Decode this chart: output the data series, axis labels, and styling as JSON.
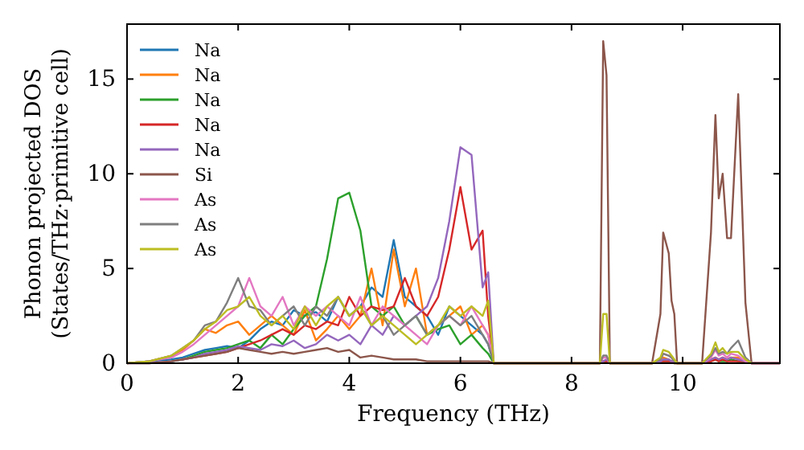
{
  "chart_data": {
    "type": "line",
    "xlabel": "Frequency (THz)",
    "ylabel": "Phonon projected DOS\n(States/THz·primitive cell)",
    "x": [
      0,
      0.4,
      0.8,
      1.0,
      1.2,
      1.4,
      1.6,
      1.8,
      2.0,
      2.2,
      2.4,
      2.6,
      2.8,
      3.0,
      3.2,
      3.4,
      3.6,
      3.8,
      4.0,
      4.2,
      4.4,
      4.6,
      4.8,
      5.0,
      5.2,
      5.4,
      5.6,
      5.8,
      6.0,
      6.2,
      6.4,
      6.5,
      6.6,
      8.51,
      8.57,
      8.63,
      8.69,
      9.45,
      9.6,
      9.65,
      9.75,
      9.8,
      9.85,
      9.9,
      10.35,
      10.51,
      10.59,
      10.65,
      10.72,
      10.8,
      10.87,
      11.0,
      11.13,
      11.24,
      11.75
    ],
    "xlim": [
      0,
      11.75
    ],
    "xticks": [
      0,
      2,
      4,
      6,
      8,
      10
    ],
    "ylim": [
      0,
      17.9
    ],
    "yticks": [
      0,
      5,
      10,
      15
    ],
    "legend": "top left",
    "line_style": "solid",
    "marker": "none",
    "series": [
      {
        "name": "Na",
        "color": "#1f77b4",
        "values": [
          0,
          0.1,
          0.2,
          0.3,
          0.5,
          0.7,
          0.8,
          0.9,
          0.8,
          1.2,
          1.8,
          2.2,
          2.0,
          2.8,
          2.5,
          2.7,
          2.2,
          3.5,
          2.5,
          3.0,
          4.0,
          3.5,
          6.5,
          3.5,
          3.0,
          2.5,
          1.5,
          3.0,
          2.5,
          2.0,
          1.5,
          1.0,
          0,
          null,
          null,
          null,
          null,
          null,
          null,
          null,
          null,
          null,
          null,
          null,
          null,
          null,
          null,
          null,
          null,
          null,
          null,
          null,
          null,
          null,
          null
        ]
      },
      {
        "name": "Na",
        "color": "#ff7f0e",
        "values": [
          0,
          0.1,
          0.4,
          0.7,
          1.2,
          1.8,
          1.6,
          2.0,
          2.2,
          1.5,
          2.0,
          2.5,
          2.0,
          1.5,
          2.8,
          1.2,
          1.8,
          2.5,
          1.8,
          2.5,
          5.0,
          2.0,
          6.0,
          3.0,
          5.0,
          1.5,
          2.0,
          2.5,
          3.0,
          1.5,
          2.0,
          1.5,
          0,
          0,
          0.1,
          0.1,
          0,
          0,
          0.2,
          0.3,
          0.2,
          0.1,
          0.1,
          0,
          0,
          0.2,
          0.3,
          0.2,
          0.3,
          0.2,
          0.3,
          0.3,
          0.1,
          0,
          0
        ]
      },
      {
        "name": "Na",
        "color": "#2ca02c",
        "values": [
          null,
          null,
          0.1,
          0.2,
          0.4,
          0.6,
          0.7,
          0.8,
          1.0,
          1.2,
          0.8,
          1.5,
          1.0,
          1.8,
          2.5,
          3.0,
          5.5,
          8.7,
          9.0,
          7.0,
          3.0,
          2.5,
          3.0,
          2.0,
          2.5,
          1.5,
          1.8,
          2.0,
          1.0,
          1.5,
          0.8,
          0.5,
          0,
          0,
          0.1,
          0.1,
          0,
          0,
          0.1,
          0.1,
          0.1,
          0.1,
          0,
          0,
          0,
          0.1,
          0.2,
          0.1,
          0.1,
          0.1,
          0.2,
          0.1,
          0.1,
          null,
          null
        ]
      },
      {
        "name": "Na",
        "color": "#d62728",
        "values": [
          null,
          null,
          null,
          0.2,
          0.3,
          0.4,
          0.5,
          0.6,
          0.8,
          1.0,
          1.2,
          1.5,
          1.8,
          1.5,
          2.0,
          1.8,
          2.2,
          2.0,
          3.5,
          2.5,
          3.0,
          2.8,
          3.0,
          4.5,
          3.0,
          2.5,
          3.5,
          6.0,
          9.3,
          6.0,
          7.0,
          2.5,
          0,
          0,
          0.1,
          0.1,
          0,
          0,
          0.1,
          0.1,
          0.1,
          0.1,
          0,
          0,
          0,
          0.1,
          0.2,
          0.1,
          0.2,
          0.1,
          0.1,
          0.1,
          0.1,
          0,
          0
        ]
      },
      {
        "name": "Na",
        "color": "#9467bd",
        "values": [
          0,
          0,
          0.1,
          0.2,
          0.3,
          0.5,
          0.6,
          0.7,
          0.9,
          0.8,
          0.7,
          1.0,
          0.9,
          1.2,
          0.8,
          1.0,
          1.5,
          1.2,
          1.5,
          1.0,
          2.0,
          1.5,
          2.5,
          2.0,
          2.5,
          3.0,
          4.5,
          7.5,
          11.4,
          11.0,
          4.0,
          4.8,
          0,
          0,
          0.1,
          0.2,
          0,
          0,
          0.1,
          0.2,
          0.2,
          0.1,
          0.1,
          0,
          0,
          0.2,
          0.3,
          0.2,
          0.3,
          0.2,
          0.3,
          0.2,
          0.1,
          0,
          0
        ]
      },
      {
        "name": "Si",
        "color": "#8c564b",
        "values": [
          0,
          0,
          0.1,
          0.2,
          0.3,
          0.4,
          0.5,
          0.6,
          0.8,
          0.7,
          0.6,
          0.5,
          0.6,
          0.5,
          0.6,
          0.7,
          0.8,
          0.6,
          0.7,
          0.3,
          0.4,
          0.3,
          0.2,
          0.2,
          0.2,
          0.1,
          0.1,
          0.1,
          0.1,
          0.1,
          0.1,
          0.1,
          0,
          0,
          17.0,
          15.2,
          0,
          0,
          2.6,
          6.9,
          5.8,
          3.3,
          2.6,
          0,
          0,
          6.9,
          13.1,
          8.7,
          10.0,
          6.6,
          6.6,
          14.2,
          3.2,
          0,
          0
        ]
      },
      {
        "name": "As",
        "color": "#e377c2",
        "values": [
          0,
          0.1,
          0.3,
          0.6,
          1.0,
          1.5,
          2.0,
          2.5,
          3.0,
          4.5,
          3.0,
          2.5,
          3.5,
          2.0,
          3.0,
          2.5,
          3.0,
          2.5,
          2.0,
          3.5,
          2.0,
          3.0,
          2.5,
          2.0,
          1.5,
          1.0,
          2.0,
          2.5,
          2.0,
          3.0,
          2.0,
          1.5,
          0,
          0,
          0.3,
          0.3,
          0,
          0,
          0.2,
          0.5,
          0.4,
          0.3,
          0.1,
          0,
          0,
          0.3,
          0.7,
          0.4,
          0.5,
          0.3,
          0.5,
          0.4,
          0.1,
          0,
          0
        ]
      },
      {
        "name": "As",
        "color": "#7f7f7f",
        "values": [
          0,
          0.1,
          0.4,
          0.8,
          1.2,
          2.0,
          2.2,
          3.2,
          4.5,
          3.0,
          2.8,
          2.0,
          2.5,
          3.0,
          2.0,
          3.0,
          2.5,
          3.5,
          2.5,
          3.0,
          2.0,
          2.5,
          1.5,
          2.0,
          2.5,
          1.5,
          2.0,
          2.5,
          2.0,
          2.5,
          1.5,
          1.0,
          0,
          0,
          0.4,
          0.4,
          0,
          0,
          0.2,
          0.5,
          0.4,
          0.3,
          0.1,
          0,
          0,
          0.4,
          0.8,
          0.5,
          0.6,
          0.5,
          0.8,
          1.2,
          0.3,
          0,
          0
        ]
      },
      {
        "name": "As",
        "color": "#bcbd22",
        "values": [
          0,
          0.1,
          0.4,
          0.8,
          1.2,
          1.8,
          2.2,
          2.8,
          3.0,
          3.5,
          2.5,
          2.0,
          2.5,
          1.8,
          3.0,
          2.0,
          3.0,
          3.5,
          2.5,
          3.0,
          2.0,
          2.5,
          2.0,
          1.5,
          1.0,
          1.5,
          2.0,
          3.0,
          2.5,
          3.0,
          2.5,
          3.3,
          0,
          0,
          2.6,
          2.6,
          0,
          0,
          0.3,
          0.7,
          0.6,
          0.4,
          0.2,
          0,
          0,
          0.5,
          1.1,
          0.6,
          0.8,
          0.5,
          0.6,
          0.6,
          0.2,
          0,
          null
        ]
      }
    ]
  }
}
